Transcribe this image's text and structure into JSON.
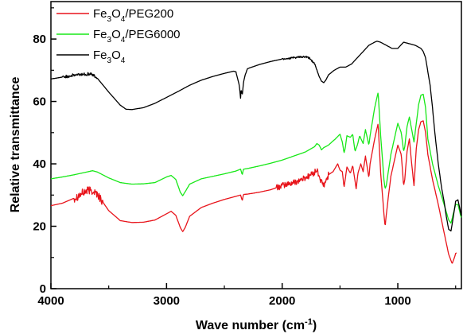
{
  "chart_data": {
    "type": "line",
    "xlabel": "Wave number (cm",
    "xlabel_sup": "-1",
    "xlabel_end": ")",
    "ylabel": "Relative transmittance",
    "xlim": [
      4000,
      450
    ],
    "ylim": [
      0,
      92
    ],
    "x_reversed": true,
    "grid": false,
    "legend_position": "top-left",
    "x_ticks": [
      4000,
      3000,
      2000,
      1000
    ],
    "y_ticks": [
      0,
      20,
      40,
      60,
      80
    ],
    "series": [
      {
        "name": "Fe3O4/PEG200",
        "label": {
          "p1": "Fe",
          "s1": "3",
          "p2": "O",
          "s2": "4",
          "p3": "/PEG200"
        },
        "color": "#e8141b",
        "noise": [
          [
            3800,
            3550,
            1.4
          ],
          [
            2050,
            1600,
            1.0
          ]
        ],
        "points": [
          [
            4000,
            26.6
          ],
          [
            3900,
            27.4
          ],
          [
            3800,
            29.0
          ],
          [
            3700,
            31.2
          ],
          [
            3650,
            31.6
          ],
          [
            3600,
            30.4
          ],
          [
            3500,
            25.0
          ],
          [
            3400,
            21.8
          ],
          [
            3300,
            21.2
          ],
          [
            3200,
            21.3
          ],
          [
            3100,
            22.0
          ],
          [
            3000,
            24.0
          ],
          [
            2960,
            24.8
          ],
          [
            2920,
            23.5
          ],
          [
            2880,
            19.5
          ],
          [
            2860,
            18.3
          ],
          [
            2840,
            19.5
          ],
          [
            2800,
            23.2
          ],
          [
            2700,
            26.0
          ],
          [
            2600,
            27.4
          ],
          [
            2500,
            28.6
          ],
          [
            2400,
            29.6
          ],
          [
            2360,
            30.0
          ],
          [
            2345,
            28.2
          ],
          [
            2335,
            30.2
          ],
          [
            2300,
            30.3
          ],
          [
            2200,
            30.9
          ],
          [
            2100,
            31.7
          ],
          [
            2000,
            33.0
          ],
          [
            1900,
            34.0
          ],
          [
            1800,
            35.5
          ],
          [
            1720,
            37.2
          ],
          [
            1700,
            38.0
          ],
          [
            1660,
            34.0
          ],
          [
            1640,
            33.0
          ],
          [
            1620,
            34.5
          ],
          [
            1600,
            36.5
          ],
          [
            1560,
            37.5
          ],
          [
            1520,
            40.0
          ],
          [
            1500,
            38.0
          ],
          [
            1480,
            37.5
          ],
          [
            1465,
            32.5
          ],
          [
            1455,
            35.0
          ],
          [
            1440,
            39.0
          ],
          [
            1410,
            37.0
          ],
          [
            1390,
            39.5
          ],
          [
            1360,
            32.0
          ],
          [
            1345,
            37.0
          ],
          [
            1320,
            40.0
          ],
          [
            1300,
            37.5
          ],
          [
            1280,
            42.5
          ],
          [
            1250,
            35.5
          ],
          [
            1240,
            40.0
          ],
          [
            1200,
            48.0
          ],
          [
            1170,
            53.0
          ],
          [
            1150,
            38.0
          ],
          [
            1120,
            24.0
          ],
          [
            1110,
            19.8
          ],
          [
            1100,
            23.5
          ],
          [
            1080,
            30.0
          ],
          [
            1060,
            36.0
          ],
          [
            1000,
            46.0
          ],
          [
            970,
            43.0
          ],
          [
            950,
            33.0
          ],
          [
            940,
            35.0
          ],
          [
            920,
            44.0
          ],
          [
            900,
            48.0
          ],
          [
            880,
            40.0
          ],
          [
            860,
            33.0
          ],
          [
            840,
            45.0
          ],
          [
            820,
            51.0
          ],
          [
            800,
            53.5
          ],
          [
            780,
            53.8
          ],
          [
            760,
            50.0
          ],
          [
            740,
            43.0
          ],
          [
            700,
            35.0
          ],
          [
            650,
            27.0
          ],
          [
            600,
            18.0
          ],
          [
            560,
            11.0
          ],
          [
            530,
            8.0
          ],
          [
            510,
            10.0
          ],
          [
            500,
            11.3
          ],
          [
            490,
            11.5
          ]
        ]
      },
      {
        "name": "Fe3O4/PEG6000",
        "label": {
          "p1": "Fe",
          "s1": "3",
          "p2": "O",
          "s2": "4",
          "p3": "/PEG6000"
        },
        "color": "#18e818",
        "noise": [],
        "points": [
          [
            4000,
            35.2
          ],
          [
            3900,
            35.8
          ],
          [
            3800,
            36.5
          ],
          [
            3700,
            37.3
          ],
          [
            3640,
            37.8
          ],
          [
            3600,
            37.4
          ],
          [
            3500,
            35.5
          ],
          [
            3400,
            34.0
          ],
          [
            3300,
            33.5
          ],
          [
            3200,
            33.6
          ],
          [
            3100,
            34.0
          ],
          [
            3000,
            35.8
          ],
          [
            2960,
            36.3
          ],
          [
            2920,
            35.0
          ],
          [
            2880,
            30.8
          ],
          [
            2860,
            29.8
          ],
          [
            2840,
            31.0
          ],
          [
            2800,
            33.5
          ],
          [
            2700,
            35.2
          ],
          [
            2600,
            36.0
          ],
          [
            2500,
            36.8
          ],
          [
            2400,
            37.7
          ],
          [
            2360,
            38.3
          ],
          [
            2345,
            36.5
          ],
          [
            2335,
            38.3
          ],
          [
            2300,
            38.5
          ],
          [
            2200,
            39.3
          ],
          [
            2100,
            40.2
          ],
          [
            2000,
            41.2
          ],
          [
            1900,
            42.5
          ],
          [
            1800,
            43.8
          ],
          [
            1720,
            45.5
          ],
          [
            1700,
            46.5
          ],
          [
            1680,
            46.0
          ],
          [
            1660,
            44.5
          ],
          [
            1640,
            45.2
          ],
          [
            1600,
            46.0
          ],
          [
            1540,
            48.0
          ],
          [
            1500,
            49.5
          ],
          [
            1480,
            47.0
          ],
          [
            1465,
            43.5
          ],
          [
            1455,
            45.0
          ],
          [
            1440,
            49.0
          ],
          [
            1410,
            48.5
          ],
          [
            1390,
            49.5
          ],
          [
            1370,
            44.0
          ],
          [
            1350,
            46.0
          ],
          [
            1330,
            49.0
          ],
          [
            1300,
            46.5
          ],
          [
            1280,
            51.0
          ],
          [
            1250,
            46.0
          ],
          [
            1240,
            49.0
          ],
          [
            1200,
            58.0
          ],
          [
            1170,
            63.0
          ],
          [
            1150,
            50.0
          ],
          [
            1120,
            35.0
          ],
          [
            1110,
            32.0
          ],
          [
            1100,
            33.0
          ],
          [
            1080,
            38.0
          ],
          [
            1060,
            43.0
          ],
          [
            1000,
            53.0
          ],
          [
            970,
            50.0
          ],
          [
            950,
            44.0
          ],
          [
            940,
            45.5
          ],
          [
            920,
            52.0
          ],
          [
            900,
            55.0
          ],
          [
            880,
            51.0
          ],
          [
            860,
            47.0
          ],
          [
            840,
            53.0
          ],
          [
            820,
            59.0
          ],
          [
            800,
            62.0
          ],
          [
            780,
            62.3
          ],
          [
            760,
            58.0
          ],
          [
            740,
            48.0
          ],
          [
            700,
            40.0
          ],
          [
            650,
            33.0
          ],
          [
            600,
            27.0
          ],
          [
            560,
            22.0
          ],
          [
            540,
            21.0
          ],
          [
            520,
            24.0
          ],
          [
            500,
            27.0
          ],
          [
            480,
            27.0
          ],
          [
            460,
            24.0
          ],
          [
            450,
            22.5
          ]
        ]
      },
      {
        "name": "Fe3O4",
        "label": {
          "p1": "Fe",
          "s1": "3",
          "p2": "O",
          "s2": "4",
          "p3": ""
        },
        "color": "#000000",
        "noise": [
          [
            3900,
            3600,
            0.5
          ],
          [
            2000,
            1700,
            0.3
          ]
        ],
        "points": [
          [
            4000,
            67.2
          ],
          [
            3900,
            67.8
          ],
          [
            3800,
            68.4
          ],
          [
            3700,
            68.8
          ],
          [
            3650,
            68.8
          ],
          [
            3600,
            67.5
          ],
          [
            3500,
            63.0
          ],
          [
            3400,
            58.8
          ],
          [
            3350,
            57.5
          ],
          [
            3300,
            57.4
          ],
          [
            3200,
            58.0
          ],
          [
            3100,
            59.4
          ],
          [
            3000,
            61.3
          ],
          [
            2900,
            63.2
          ],
          [
            2800,
            65.2
          ],
          [
            2700,
            66.8
          ],
          [
            2600,
            68.0
          ],
          [
            2500,
            69.0
          ],
          [
            2420,
            69.7
          ],
          [
            2400,
            69.5
          ],
          [
            2370,
            65.0
          ],
          [
            2360,
            61.0
          ],
          [
            2355,
            64.0
          ],
          [
            2345,
            62.0
          ],
          [
            2335,
            66.0
          ],
          [
            2320,
            68.5
          ],
          [
            2300,
            70.5
          ],
          [
            2200,
            71.8
          ],
          [
            2100,
            72.8
          ],
          [
            2000,
            73.6
          ],
          [
            1900,
            74.0
          ],
          [
            1850,
            74.2
          ],
          [
            1800,
            74.3
          ],
          [
            1760,
            73.8
          ],
          [
            1720,
            72.0
          ],
          [
            1700,
            70.0
          ],
          [
            1680,
            68.0
          ],
          [
            1660,
            66.5
          ],
          [
            1640,
            66.0
          ],
          [
            1620,
            67.0
          ],
          [
            1600,
            68.5
          ],
          [
            1550,
            70.0
          ],
          [
            1500,
            71.0
          ],
          [
            1450,
            71.0
          ],
          [
            1400,
            72.0
          ],
          [
            1350,
            74.0
          ],
          [
            1300,
            76.0
          ],
          [
            1250,
            78.0
          ],
          [
            1200,
            79.0
          ],
          [
            1180,
            79.3
          ],
          [
            1150,
            79.0
          ],
          [
            1100,
            78.0
          ],
          [
            1050,
            77.0
          ],
          [
            1000,
            77.0
          ],
          [
            950,
            79.0
          ],
          [
            900,
            78.5
          ],
          [
            850,
            78.0
          ],
          [
            800,
            77.0
          ],
          [
            780,
            76.0
          ],
          [
            760,
            74.0
          ],
          [
            720,
            65.0
          ],
          [
            700,
            58.0
          ],
          [
            680,
            50.0
          ],
          [
            650,
            40.0
          ],
          [
            620,
            32.0
          ],
          [
            600,
            28.0
          ],
          [
            580,
            23.0
          ],
          [
            560,
            19.0
          ],
          [
            540,
            18.5
          ],
          [
            520,
            23.0
          ],
          [
            500,
            28.0
          ],
          [
            480,
            28.5
          ],
          [
            460,
            25.0
          ],
          [
            450,
            23.0
          ]
        ]
      }
    ]
  }
}
